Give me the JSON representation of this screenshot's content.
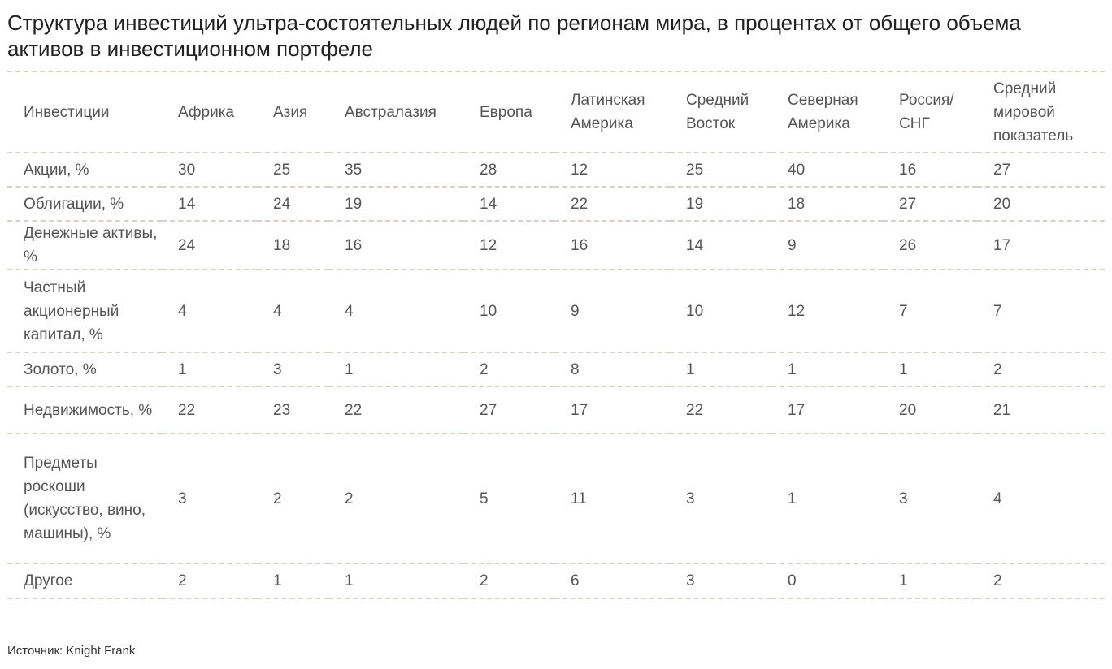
{
  "title": "Структура инвестиций ультра-состоятельных людей по регионам мира, в процентах от общего объема активов в инвестиционном портфеле",
  "source": "Источник: Knight Frank",
  "chart_data": {
    "type": "table",
    "title": "Структура инвестиций ультра-состоятельных людей по регионам мира, в процентах от общего объема активов в инвестиционном портфеле",
    "header_label": "Инвестиции",
    "columns": [
      "Африка",
      "Азия",
      "Австралазия",
      "Европа",
      "Латинская Америка",
      "Средний Восток",
      "Северная Америка",
      "Россия/ СНГ",
      "Средний мировой показатель"
    ],
    "rows": [
      {
        "label": "Акции, %",
        "values": [
          30,
          25,
          35,
          28,
          12,
          25,
          40,
          16,
          27
        ]
      },
      {
        "label": "Облигации, %",
        "values": [
          14,
          24,
          19,
          14,
          22,
          19,
          18,
          27,
          20
        ]
      },
      {
        "label": "Денежные активы, %",
        "values": [
          24,
          18,
          16,
          12,
          16,
          14,
          9,
          26,
          17
        ]
      },
      {
        "label": "Частный акционерный капитал, %",
        "values": [
          4,
          4,
          4,
          10,
          9,
          10,
          12,
          7,
          7
        ]
      },
      {
        "label": "Золото, %",
        "values": [
          1,
          3,
          1,
          2,
          8,
          1,
          1,
          1,
          2
        ]
      },
      {
        "label": "Недвижимость, %",
        "values": [
          22,
          23,
          22,
          27,
          17,
          22,
          17,
          20,
          21
        ]
      },
      {
        "label": "Предметы роскоши (искусство, вино, машины), %",
        "values": [
          3,
          2,
          2,
          5,
          11,
          3,
          1,
          3,
          4
        ]
      },
      {
        "label": "Другое",
        "values": [
          2,
          1,
          1,
          2,
          6,
          3,
          0,
          1,
          2
        ]
      }
    ],
    "source": "Источник: Knight Frank"
  }
}
